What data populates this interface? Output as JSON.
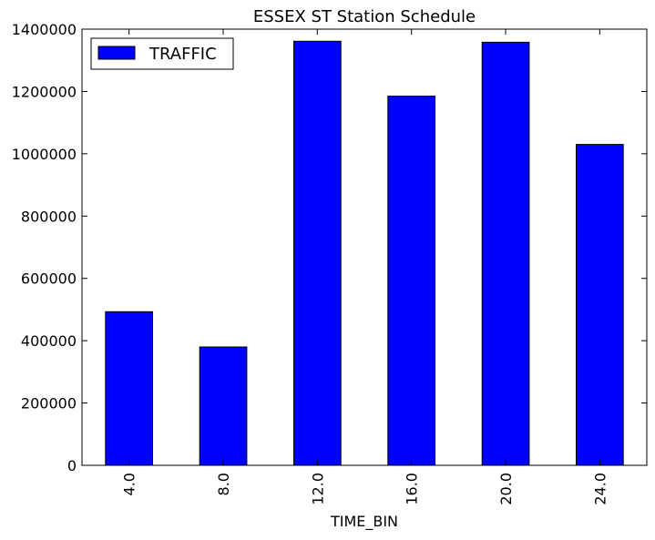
{
  "chart_data": {
    "type": "bar",
    "title": "ESSEX ST Station Schedule",
    "xlabel": "TIME_BIN",
    "ylabel": "",
    "categories": [
      "4.0",
      "8.0",
      "12.0",
      "16.0",
      "20.0",
      "24.0"
    ],
    "series": [
      {
        "name": "TRAFFIC",
        "color": "#0000ff",
        "values": [
          493000,
          380000,
          1361000,
          1185000,
          1358000,
          1030000
        ]
      }
    ],
    "ylim": [
      0,
      1400000
    ],
    "yticks": [
      0,
      200000,
      400000,
      600000,
      800000,
      1000000,
      1200000,
      1400000
    ],
    "grid": false,
    "legend_position": "top-left",
    "x_tick_rotation": "vertical"
  }
}
